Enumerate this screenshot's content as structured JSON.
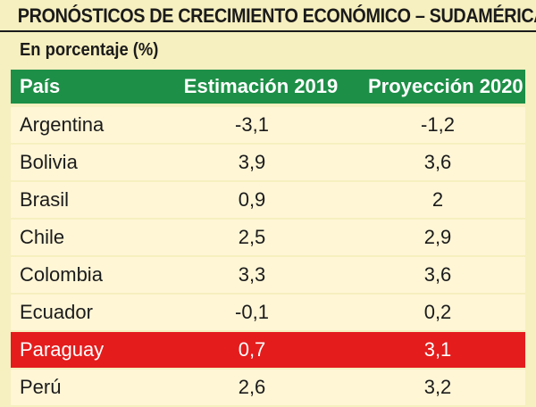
{
  "title": "PRONÓSTICOS DE CRECIMIENTO ECONÓMICO – SUDAMÉRICA",
  "subtitle": "En porcentaje (%)",
  "colors": {
    "background": "#f6efbf",
    "header": "#1d8f47",
    "highlight": "#e41c1c"
  },
  "chart_data": {
    "type": "table",
    "columns": [
      "País",
      "Estimación 2019",
      "Proyección 2020"
    ],
    "rows": [
      {
        "country": "Argentina",
        "estimate_2019": "-3,1",
        "projection_2020": "-1,2"
      },
      {
        "country": "Bolivia",
        "estimate_2019": "3,9",
        "projection_2020": "3,6"
      },
      {
        "country": "Brasil",
        "estimate_2019": "0,9",
        "projection_2020": "2"
      },
      {
        "country": "Chile",
        "estimate_2019": "2,5",
        "projection_2020": "2,9"
      },
      {
        "country": "Colombia",
        "estimate_2019": "3,3",
        "projection_2020": "3,6"
      },
      {
        "country": "Ecuador",
        "estimate_2019": "-0,1",
        "projection_2020": "0,2"
      },
      {
        "country": "Paraguay",
        "estimate_2019": "0,7",
        "projection_2020": "3,1",
        "highlighted": true
      },
      {
        "country": "Perú",
        "estimate_2019": "2,6",
        "projection_2020": "3,2"
      }
    ]
  }
}
